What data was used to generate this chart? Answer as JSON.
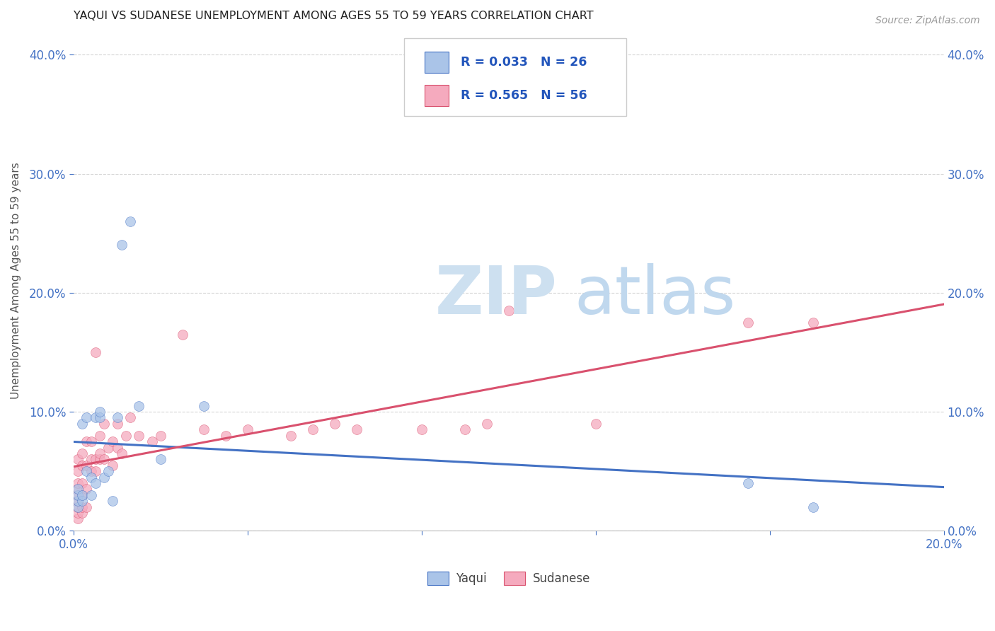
{
  "title": "YAQUI VS SUDANESE UNEMPLOYMENT AMONG AGES 55 TO 59 YEARS CORRELATION CHART",
  "source": "Source: ZipAtlas.com",
  "ylabel": "Unemployment Among Ages 55 to 59 years",
  "xlim": [
    0.0,
    0.2
  ],
  "ylim": [
    0.0,
    0.42
  ],
  "yaqui_R": 0.033,
  "yaqui_N": 26,
  "sudanese_R": 0.565,
  "sudanese_N": 56,
  "yaqui_color": "#aac4e8",
  "sudanese_color": "#f5aabe",
  "yaqui_line_color": "#4472c4",
  "sudanese_line_color": "#d9516e",
  "legend_text_color": "#2255bb",
  "background_color": "#ffffff",
  "watermark_zip_color": "#cde0f0",
  "watermark_atlas_color": "#c0d8ee",
  "yaqui_x": [
    0.001,
    0.001,
    0.001,
    0.001,
    0.002,
    0.002,
    0.002,
    0.003,
    0.003,
    0.004,
    0.004,
    0.005,
    0.005,
    0.006,
    0.006,
    0.007,
    0.008,
    0.009,
    0.01,
    0.011,
    0.013,
    0.015,
    0.02,
    0.03,
    0.155,
    0.17
  ],
  "yaqui_y": [
    0.02,
    0.025,
    0.03,
    0.035,
    0.025,
    0.03,
    0.09,
    0.05,
    0.095,
    0.03,
    0.045,
    0.04,
    0.095,
    0.095,
    0.1,
    0.045,
    0.05,
    0.025,
    0.095,
    0.24,
    0.26,
    0.105,
    0.06,
    0.105,
    0.04,
    0.02
  ],
  "sudanese_x": [
    0.001,
    0.001,
    0.001,
    0.001,
    0.001,
    0.001,
    0.001,
    0.001,
    0.001,
    0.002,
    0.002,
    0.002,
    0.002,
    0.002,
    0.002,
    0.003,
    0.003,
    0.003,
    0.003,
    0.004,
    0.004,
    0.004,
    0.005,
    0.005,
    0.005,
    0.006,
    0.006,
    0.006,
    0.007,
    0.007,
    0.008,
    0.009,
    0.009,
    0.01,
    0.01,
    0.011,
    0.012,
    0.013,
    0.015,
    0.018,
    0.02,
    0.025,
    0.03,
    0.035,
    0.04,
    0.05,
    0.055,
    0.06,
    0.065,
    0.08,
    0.09,
    0.095,
    0.1,
    0.12,
    0.155,
    0.17
  ],
  "sudanese_y": [
    0.01,
    0.015,
    0.02,
    0.025,
    0.03,
    0.035,
    0.04,
    0.05,
    0.06,
    0.015,
    0.02,
    0.03,
    0.04,
    0.055,
    0.065,
    0.02,
    0.035,
    0.055,
    0.075,
    0.05,
    0.06,
    0.075,
    0.05,
    0.06,
    0.15,
    0.06,
    0.065,
    0.08,
    0.06,
    0.09,
    0.07,
    0.055,
    0.075,
    0.07,
    0.09,
    0.065,
    0.08,
    0.095,
    0.08,
    0.075,
    0.08,
    0.165,
    0.085,
    0.08,
    0.085,
    0.08,
    0.085,
    0.09,
    0.085,
    0.085,
    0.085,
    0.09,
    0.185,
    0.09,
    0.175,
    0.175
  ]
}
